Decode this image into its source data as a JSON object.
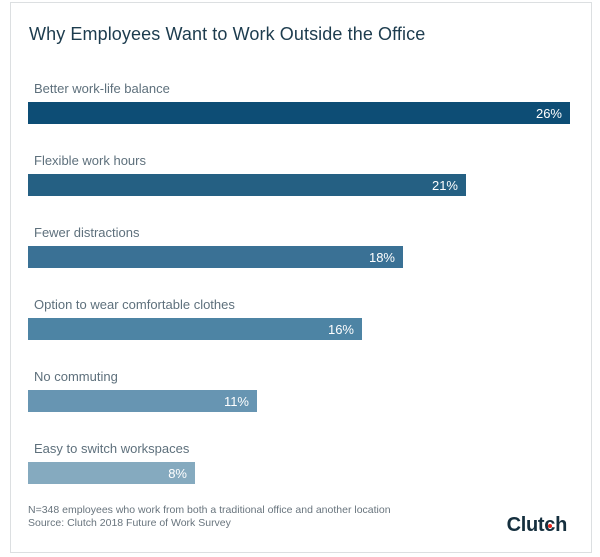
{
  "chart_data": {
    "type": "bar",
    "orientation": "horizontal",
    "title": "Why Employees Want to Work Outside the Office",
    "categories": [
      "Better work-life balance",
      "Flexible work hours",
      "Fewer distractions",
      "Option to wear comfortable clothes",
      "No commuting",
      "Easy to switch workspaces"
    ],
    "values": [
      26,
      21,
      18,
      16,
      11,
      8
    ],
    "value_labels": [
      "26%",
      "21%",
      "18%",
      "16%",
      "11%",
      "8%"
    ],
    "bar_colors": [
      "#0d4d75",
      "#256083",
      "#3a7195",
      "#4d84a4",
      "#6795b2",
      "#85aabf"
    ],
    "xlabel": "",
    "ylabel": "",
    "xlim": [
      0,
      26
    ],
    "grid": false,
    "legend": false,
    "value_label_position": "inside-end",
    "value_label_color": "#ffffff"
  },
  "footer": {
    "note": "N=348 employees who work from both a traditional office and another location",
    "source": "Source: Clutch 2018 Future of Work Survey"
  },
  "branding": {
    "logo_text_before_dot": "Clut",
    "logo_dot_letter": "c",
    "logo_text_after_dot": "h",
    "logo_color": "#152f3e",
    "logo_dot_color": "#e8261d"
  }
}
